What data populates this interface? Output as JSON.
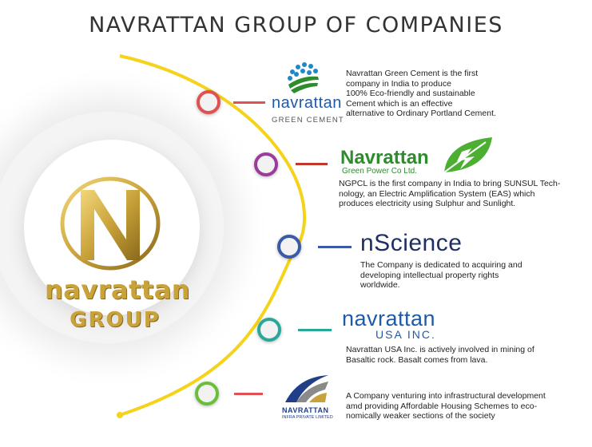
{
  "title": "NAVRATTAN GROUP OF COMPANIES",
  "main_logo": {
    "word": "navrattan",
    "sub": "GROUP"
  },
  "colors": {
    "arc": "#f5d31c",
    "gold": "#c9a23a",
    "green": "#2e8b2e",
    "blue": "#1f5aa8",
    "teal": "#2aa79b"
  },
  "companies": [
    {
      "brand": "navrattan",
      "sub": "GREEN CEMENT",
      "desc": [
        "Navrattan Green Cement is the first",
        "company in India to produce",
        "100% Eco-friendly and sustainable",
        "Cement which is an effective",
        "alternative to Ordinary Portland Cement."
      ],
      "node_color": "#e05252",
      "line_color": "#e05252",
      "icon": "dots-globe-icon"
    },
    {
      "brand": "Navrattan",
      "sub": "Green Power Co Ltd.",
      "desc": [
        "NGPCL is the first company in India to bring SUNSUL Tech-",
        "nology, an Electric Amplification System (EAS) which",
        "produces electricity using Sulphur and Sunlight."
      ],
      "node_color": "#9b3b9b",
      "line_color": "#c0392b",
      "icon": "leaf-bolt-icon"
    },
    {
      "brand": "nScience",
      "desc": [
        "The Company is dedicated to acquiring and",
        "developing intellectual property rights",
        "worldwide."
      ],
      "node_color": "#3a5aa8",
      "line_color": "#3a5aa8"
    },
    {
      "brand": "navrattan",
      "sub": "USA INC.",
      "desc": [
        "Navrattan USA Inc. is actively involved in mining of",
        "Basaltic rock. Basalt comes from lava."
      ],
      "node_color": "#2aa79b",
      "line_color": "#2aa79b"
    },
    {
      "brand": "NAVRATTAN",
      "sub": "INFRA PRIVATE LIMITED",
      "desc": [
        "A Company venturing into infrastructural development",
        "amd providing Affordable Housing Schemes to eco-",
        "nomically weaker sections of the society"
      ],
      "node_color": "#6abf3a",
      "line_color": "#e05252",
      "icon": "infra-swoosh-icon"
    }
  ]
}
